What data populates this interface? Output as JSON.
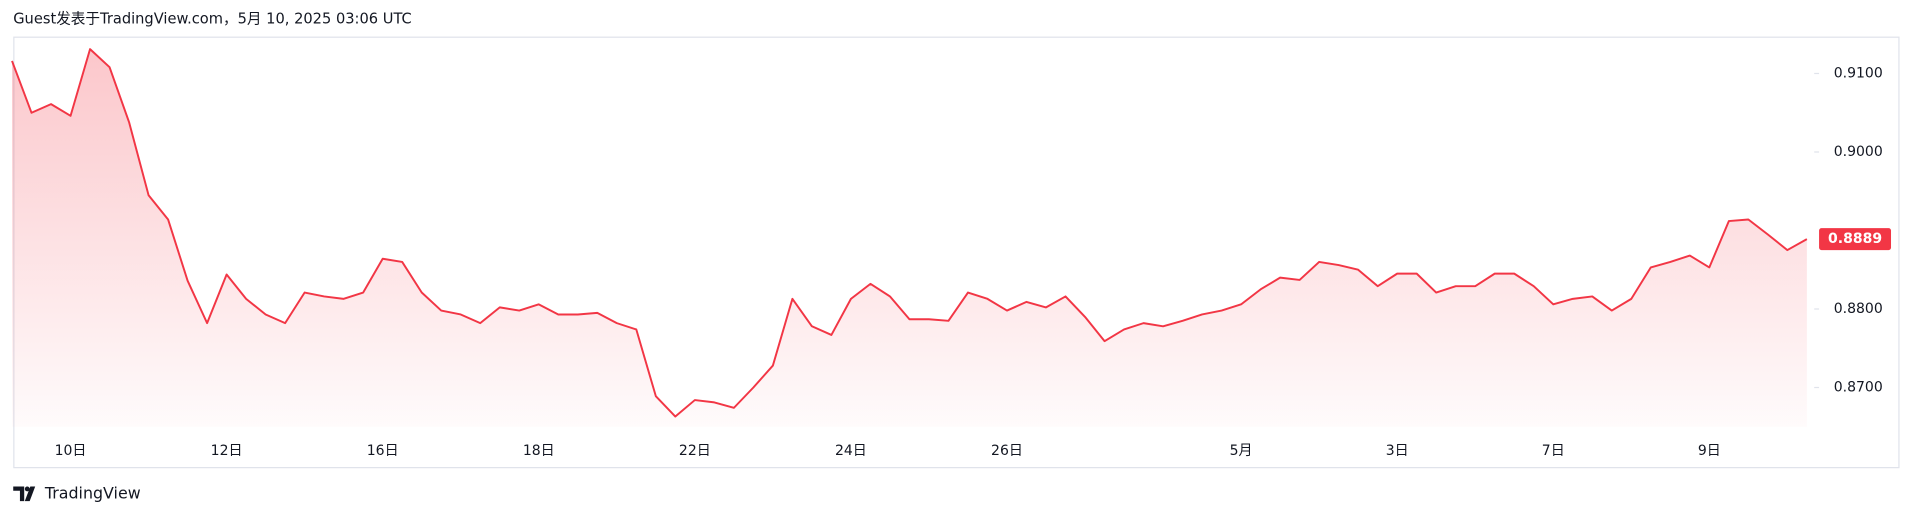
{
  "header": "Guest发表于TradingView.com，5月 10, 2025 03:06 UTC",
  "footer": "TradingView",
  "chart_data": {
    "type": "line",
    "categories": [
      null,
      null,
      null,
      "10日",
      null,
      null,
      null,
      null,
      null,
      null,
      null,
      "12日",
      null,
      null,
      null,
      null,
      null,
      null,
      null,
      "16日",
      null,
      null,
      null,
      null,
      null,
      null,
      null,
      "18日",
      null,
      null,
      null,
      null,
      null,
      null,
      null,
      "22日",
      null,
      null,
      null,
      null,
      null,
      null,
      null,
      "24日",
      null,
      null,
      null,
      null,
      null,
      null,
      null,
      "26日",
      null,
      null,
      null,
      null,
      null,
      null,
      null,
      null,
      null,
      null,
      null,
      "5月",
      null,
      null,
      null,
      null,
      null,
      null,
      null,
      "3日",
      null,
      null,
      null,
      null,
      null,
      null,
      null,
      "7日",
      null,
      null,
      null,
      null,
      null,
      null,
      null,
      "9日",
      null,
      null,
      null,
      null,
      null
    ],
    "series": [
      {
        "color": "#f23645",
        "values": [
          0.9116,
          0.905,
          0.9061,
          0.9046,
          0.9131,
          0.9108,
          0.9038,
          0.8945,
          0.8914,
          0.8836,
          0.8782,
          0.8844,
          0.8813,
          0.8793,
          0.8782,
          0.8821,
          0.8816,
          0.8813,
          0.8821,
          0.8864,
          0.886,
          0.8821,
          0.8798,
          0.8793,
          0.8782,
          0.8802,
          0.8798,
          0.8806,
          0.8793,
          0.8793,
          0.8795,
          0.8782,
          0.8774,
          0.8689,
          0.8663,
          0.8684,
          0.8681,
          0.8674,
          0.87,
          0.8728,
          0.8813,
          0.8778,
          0.8767,
          0.8813,
          0.8832,
          0.8816,
          0.8787,
          0.8787,
          0.8785,
          0.8821,
          0.8813,
          0.8798,
          0.8809,
          0.8802,
          0.8816,
          0.879,
          0.8759,
          0.8774,
          0.8782,
          0.8778,
          0.8785,
          0.8793,
          0.8798,
          0.8806,
          0.8825,
          0.884,
          0.8837,
          0.886,
          0.8856,
          0.885,
          0.8829,
          0.8845,
          0.8845,
          0.8821,
          0.8829,
          0.8829,
          0.8845,
          0.8845,
          0.8829,
          0.8806,
          0.8813,
          0.8816,
          0.8798,
          0.8813,
          0.8853,
          0.886,
          0.8868,
          0.8853,
          0.8912,
          0.8914,
          0.8895,
          0.8875,
          0.8889
        ]
      }
    ],
    "ylim": [
      0.865,
      0.9147
    ],
    "yticks": [
      {
        "value": 0.87,
        "label": "0.8700"
      },
      {
        "value": 0.88,
        "label": "0.8800"
      },
      {
        "value": 0.9,
        "label": "0.9000"
      },
      {
        "value": 0.91,
        "label": "0.9100"
      }
    ],
    "grid": false
  }
}
